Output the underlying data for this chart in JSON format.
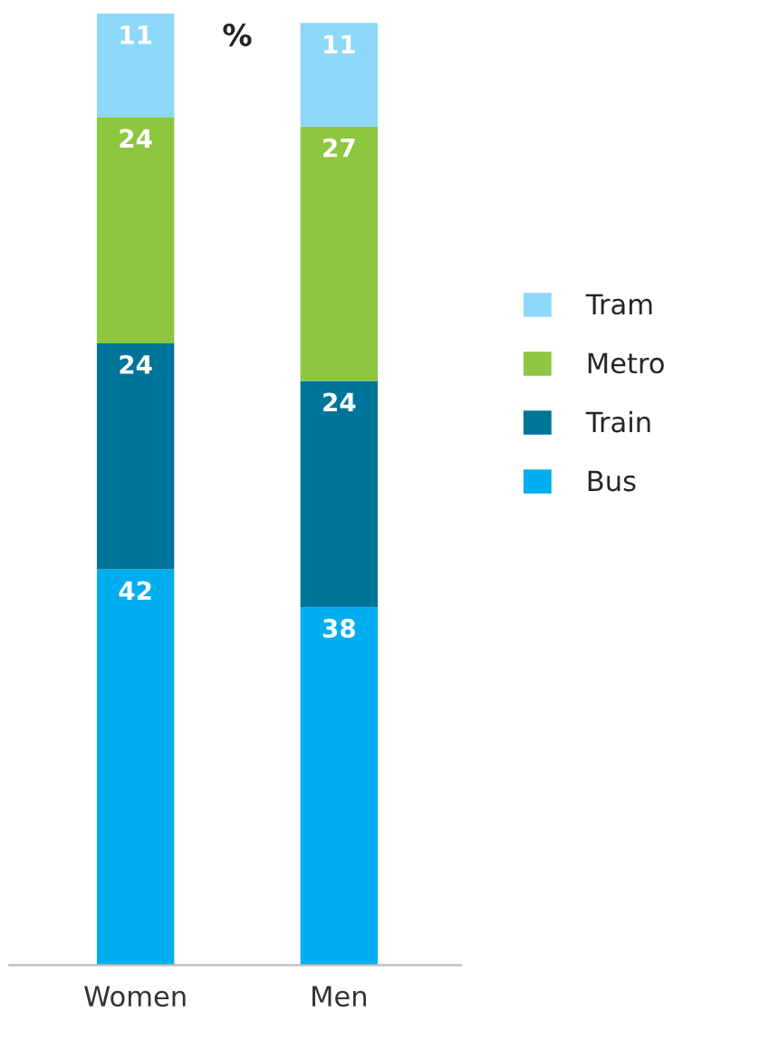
{
  "chart_data": {
    "type": "bar",
    "stacked": true,
    "data_labels": true,
    "legend": "right",
    "grid": false,
    "categories": [
      "Women",
      "Men"
    ],
    "annotations": [
      "%"
    ],
    "series": [
      {
        "name": "Bus",
        "color": "#00aeef",
        "values": [
          42,
          38
        ]
      },
      {
        "name": "Train",
        "color": "#00759a",
        "values": [
          24,
          24
        ]
      },
      {
        "name": "Metro",
        "color": "#8dc63f",
        "values": [
          24,
          27
        ]
      },
      {
        "name": "Tram",
        "color": "#8dd8f8",
        "values": [
          11,
          11
        ]
      }
    ]
  }
}
